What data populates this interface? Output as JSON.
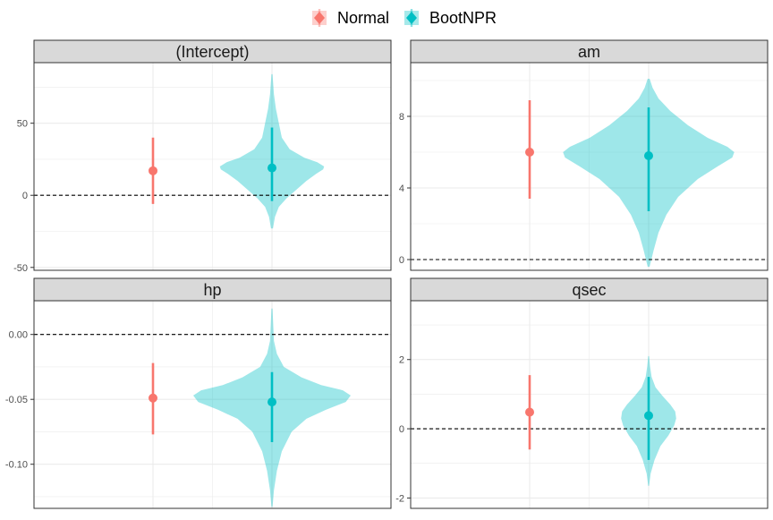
{
  "legend": {
    "items": [
      {
        "label": "Normal",
        "color": "#F8766D"
      },
      {
        "label": "BootNPR",
        "color": "#00BFC4"
      }
    ]
  },
  "chart_data": [
    {
      "type": "violin-pointrange",
      "panel_title": "(Intercept)",
      "ylim": [
        -52,
        92
      ],
      "yticks": [
        -50,
        0,
        50
      ],
      "ytick_labels": [
        "-50",
        "0",
        "50"
      ],
      "reference_line": 0,
      "series": [
        {
          "name": "Normal",
          "estimate": 17,
          "lower": -6,
          "upper": 40
        },
        {
          "name": "BootNPR",
          "estimate": 19,
          "lower": -4,
          "upper": 47,
          "violin_y": [
            -23,
            -15,
            -8,
            -2,
            4,
            10,
            15,
            18,
            20,
            23,
            26,
            32,
            40,
            50,
            60,
            70,
            84
          ],
          "violin_w": [
            0.01,
            0.03,
            0.07,
            0.15,
            0.25,
            0.35,
            0.45,
            0.52,
            0.53,
            0.46,
            0.33,
            0.18,
            0.1,
            0.07,
            0.04,
            0.02,
            0.005
          ]
        }
      ]
    },
    {
      "type": "violin-pointrange",
      "panel_title": "am",
      "ylim": [
        -0.6,
        11
      ],
      "yticks": [
        0,
        4,
        8
      ],
      "ytick_labels": [
        "0",
        "4",
        "8"
      ],
      "reference_line": 0,
      "series": [
        {
          "name": "Normal",
          "estimate": 6.0,
          "lower": 3.4,
          "upper": 8.9
        },
        {
          "name": "BootNPR",
          "estimate": 5.8,
          "lower": 2.7,
          "upper": 8.5,
          "violin_y": [
            -0.4,
            0.5,
            1.5,
            2.5,
            3.5,
            4.5,
            5.2,
            5.7,
            6.0,
            6.3,
            6.8,
            7.5,
            8.3,
            9.0,
            9.6,
            10.1
          ],
          "violin_w": [
            0.01,
            0.05,
            0.1,
            0.18,
            0.3,
            0.5,
            0.7,
            0.85,
            0.87,
            0.8,
            0.6,
            0.4,
            0.22,
            0.1,
            0.04,
            0.01
          ]
        }
      ]
    },
    {
      "type": "violin-pointrange",
      "panel_title": "hp",
      "ylim": [
        -0.134,
        0.026
      ],
      "yticks": [
        -0.1,
        -0.05,
        0.0
      ],
      "ytick_labels": [
        "-0.10",
        "-0.05",
        "0.00"
      ],
      "reference_line": 0,
      "series": [
        {
          "name": "Normal",
          "estimate": -0.049,
          "lower": -0.077,
          "upper": -0.022
        },
        {
          "name": "BootNPR",
          "estimate": -0.052,
          "lower": -0.083,
          "upper": -0.029,
          "violin_y": [
            -0.133,
            -0.12,
            -0.105,
            -0.09,
            -0.075,
            -0.065,
            -0.058,
            -0.052,
            -0.047,
            -0.043,
            -0.039,
            -0.033,
            -0.025,
            -0.015,
            -0.005,
            0.02
          ],
          "violin_w": [
            0.005,
            0.02,
            0.05,
            0.1,
            0.2,
            0.35,
            0.55,
            0.75,
            0.8,
            0.72,
            0.5,
            0.3,
            0.12,
            0.05,
            0.02,
            0.005
          ]
        }
      ]
    },
    {
      "type": "violin-pointrange",
      "panel_title": "qsec",
      "ylim": [
        -2.3,
        3.7
      ],
      "yticks": [
        -2,
        0,
        2
      ],
      "ytick_labels": [
        "-2",
        "0",
        "2"
      ],
      "reference_line": 0,
      "series": [
        {
          "name": "Normal",
          "estimate": 0.48,
          "lower": -0.6,
          "upper": 1.55
        },
        {
          "name": "BootNPR",
          "estimate": 0.38,
          "lower": -0.9,
          "upper": 1.5,
          "violin_y": [
            -1.65,
            -1.3,
            -0.9,
            -0.5,
            -0.2,
            0.1,
            0.3,
            0.5,
            0.7,
            0.95,
            1.2,
            1.5,
            1.8,
            2.1
          ],
          "violin_w": [
            0.005,
            0.02,
            0.06,
            0.12,
            0.2,
            0.26,
            0.28,
            0.27,
            0.22,
            0.14,
            0.07,
            0.03,
            0.015,
            0.005
          ]
        }
      ]
    }
  ]
}
